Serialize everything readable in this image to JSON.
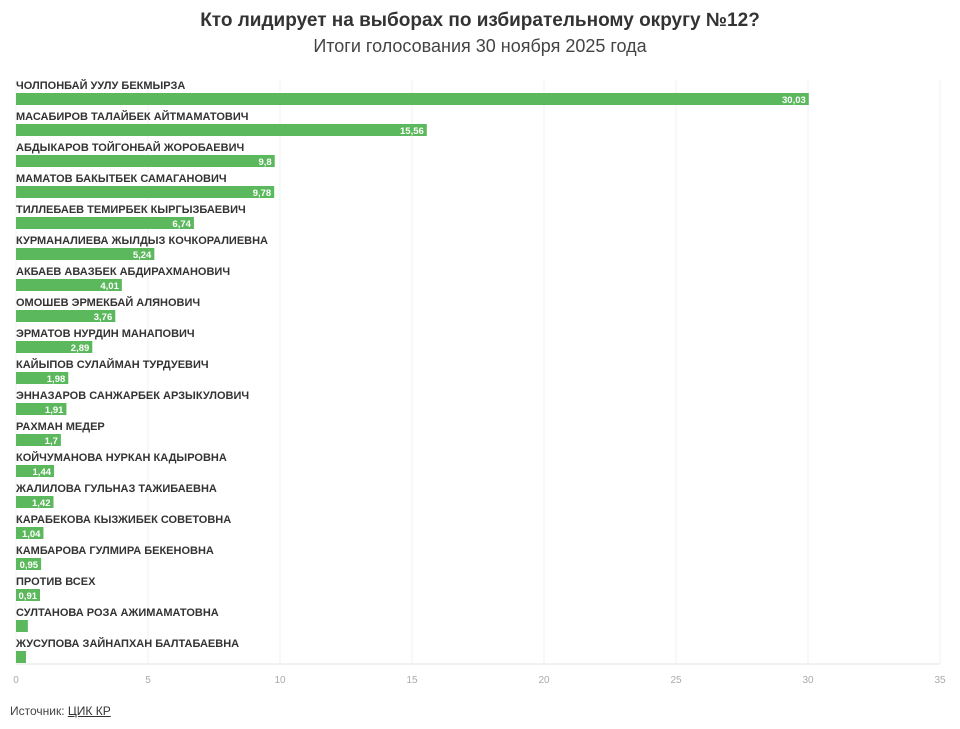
{
  "chart_data": {
    "type": "bar",
    "orientation": "horizontal",
    "title": "Кто лидирует на выборах по избирательному округу №12?",
    "subtitle": "Итоги голосования 30 ноября 2025 года",
    "categories": [
      "ЧОЛПОНБАЙ УУЛУ БЕКМЫРЗА",
      "МАСАБИРОВ ТАЛАЙБЕК АЙТМАМАТОВИЧ",
      "АБДЫКАРОВ ТОЙГОНБАЙ ЖОРОБАЕВИЧ",
      "МАМАТОВ БАКЫТБЕК САМАГАНОВИЧ",
      "ТИЛЛЕБАЕВ ТЕМИРБЕК КЫРГЫЗБАЕВИЧ",
      "КУРМАНАЛИЕВА ЖЫЛДЫЗ КОЧКОРАЛИЕВНА",
      "АКБАЕВ АВАЗБЕК АБДИРАХМАНОВИЧ",
      "ОМОШЕВ ЭРМЕКБАЙ АЛЯНОВИЧ",
      "ЭРМАТОВ НУРДИН МАНАПОВИЧ",
      "КАЙЫПОВ СУЛАЙМАН ТУРДУЕВИЧ",
      "ЭННАЗАРОВ САНЖАРБЕК АРЗЫКУЛОВИЧ",
      "РАХМАН МЕДЕР",
      "КОЙЧУМАНОВА НУРКАН КАДЫРОВНА",
      "ЖАЛИЛОВА ГУЛЬНАЗ ТАЖИБАЕВНА",
      "КАРАБЕКОВА КЫЗЖИБЕК СОВЕТОВНА",
      "КАМБАРОВА ГУЛМИРА БЕКЕНОВНА",
      "ПРОТИВ ВСЕХ",
      "СУЛТАНОВА РОЗА АЖИМАМАТОВНА",
      "ЖУСУПОВА ЗАЙНАПХАН БАЛТАБАЕВНА"
    ],
    "values": [
      30.03,
      15.56,
      9.8,
      9.78,
      6.74,
      5.24,
      4.01,
      3.76,
      2.89,
      1.98,
      1.91,
      1.7,
      1.44,
      1.42,
      1.04,
      0.95,
      0.91,
      0.45,
      0.38
    ],
    "data_labels": [
      "30,03",
      "15,56",
      "9,8",
      "9,78",
      "6,74",
      "5,24",
      "4,01",
      "3,76",
      "2,89",
      "1,98",
      "1,91",
      "1,7",
      "1,44",
      "1,42",
      "1,04",
      "0,95",
      "0,91",
      "",
      ""
    ],
    "xlim": [
      0,
      35
    ],
    "xticks": [
      0,
      5,
      10,
      15,
      20,
      25,
      30,
      35
    ],
    "grid": true,
    "bar_color": "#5cb85c"
  },
  "source": {
    "label": "Источник:",
    "link": "ЦИК КР"
  }
}
